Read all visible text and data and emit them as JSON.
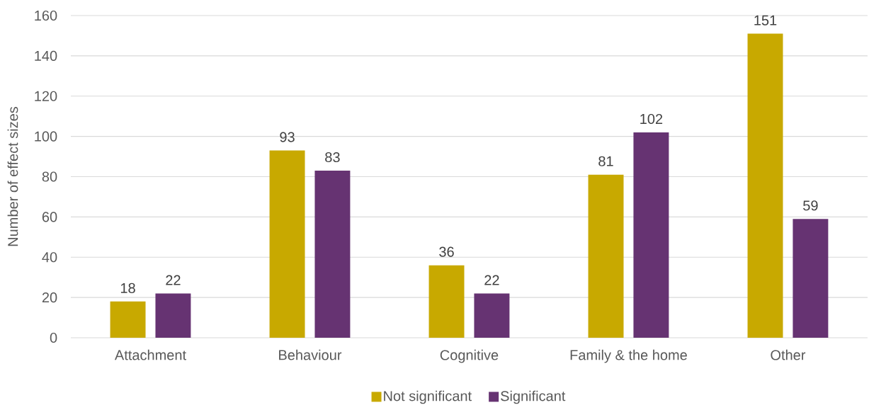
{
  "chart_data": {
    "type": "bar",
    "ylabel": "Number of effect sizes",
    "categories": [
      "Attachment",
      "Behaviour",
      "Cognitive",
      "Family & the home",
      "Other"
    ],
    "series": [
      {
        "name": "Not significant",
        "color": "#C8A900",
        "values": [
          18,
          93,
          36,
          81,
          151
        ]
      },
      {
        "name": "Significant",
        "color": "#663372",
        "values": [
          22,
          83,
          22,
          102,
          59
        ]
      }
    ],
    "ylim": [
      0,
      160
    ],
    "yticks": [
      0,
      20,
      40,
      60,
      80,
      100,
      120,
      140,
      160
    ],
    "grid": "y",
    "data_labels": true,
    "legend": "bottom"
  }
}
